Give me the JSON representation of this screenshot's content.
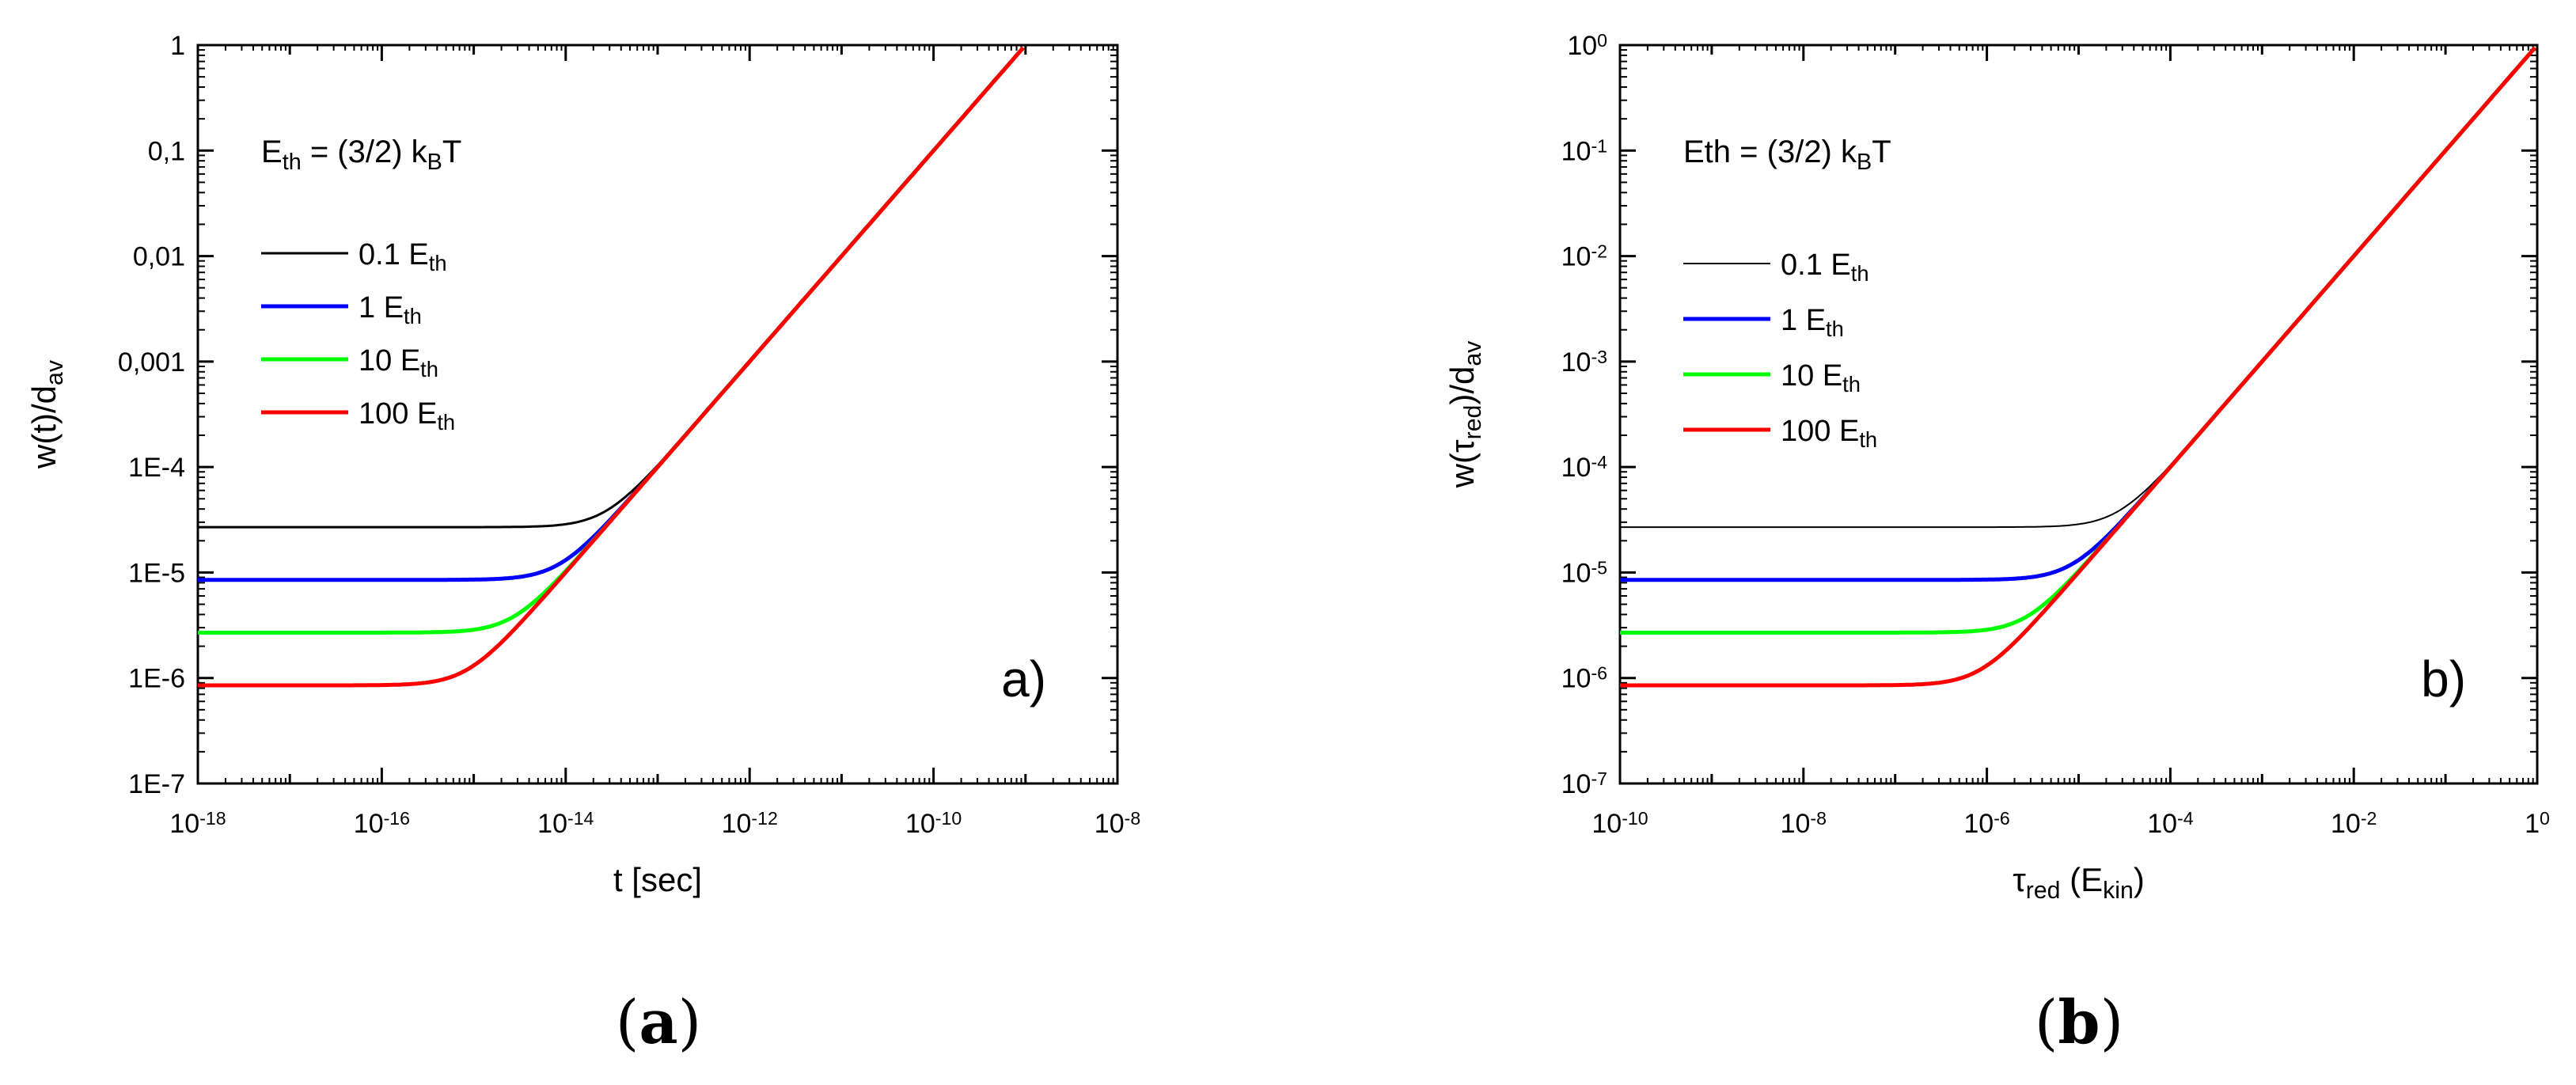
{
  "chart_data": [
    {
      "type": "line",
      "id": "a",
      "xscale": "log",
      "yscale": "log",
      "xlim_exp": [
        -18,
        -8
      ],
      "ylim_exp": [
        -7,
        0
      ],
      "xlabel": "t [sec]",
      "ylabel": {
        "main": "w(t)/d",
        "sub": "av"
      },
      "x_ticks": [
        {
          "base": "10",
          "exp": "-18"
        },
        {
          "base": "10",
          "exp": "-16"
        },
        {
          "base": "10",
          "exp": "-14"
        },
        {
          "base": "10",
          "exp": "-12"
        },
        {
          "base": "10",
          "exp": "-10"
        },
        {
          "base": "10",
          "exp": "-8"
        }
      ],
      "y_ticks": [
        {
          "text": "1E-7"
        },
        {
          "text": "1E-6"
        },
        {
          "text": "1E-5"
        },
        {
          "text": "1E-4"
        },
        {
          "text": "0,001"
        },
        {
          "text": "0,01"
        },
        {
          "text": "0,1"
        },
        {
          "text": "1"
        }
      ],
      "annotation": {
        "prefix": "E",
        "sub": "th",
        "suffix": " = (3/2) k",
        "sub2": "B",
        "tail": "T"
      },
      "panel_label": "a)",
      "caption": {
        "open": "(",
        "letter": "a",
        "close": ")"
      },
      "series": [
        {
          "name": "0.1 E",
          "name_sub": "th",
          "color": "#000000",
          "plateau_exp": -4.57,
          "cross_exp": -13.57
        },
        {
          "name": "1 E",
          "name_sub": "th",
          "color": "#0000ff",
          "plateau_exp": -5.07,
          "cross_exp": -14.07
        },
        {
          "name": "10 E",
          "name_sub": "th",
          "color": "#00ff00",
          "plateau_exp": -5.57,
          "cross_exp": -14.57
        },
        {
          "name": "100 E",
          "name_sub": "th",
          "color": "#ff0000",
          "plateau_exp": -6.07,
          "cross_exp": -15.07
        }
      ]
    },
    {
      "type": "line",
      "id": "b",
      "xscale": "log",
      "yscale": "log",
      "xlim_exp": [
        -10,
        0
      ],
      "ylim_exp": [
        -7,
        0
      ],
      "xlabel": {
        "tau": "τ",
        "sub": "red",
        "mid": " (E",
        "sub2": "kin",
        "tail": ")"
      },
      "ylabel": {
        "pre": "w(τ",
        "sub": "red",
        "mid": ")/d",
        "sub2": "av"
      },
      "x_ticks": [
        {
          "base": "10",
          "exp": "-10"
        },
        {
          "base": "10",
          "exp": "-8"
        },
        {
          "base": "10",
          "exp": "-6"
        },
        {
          "base": "10",
          "exp": "-4"
        },
        {
          "base": "10",
          "exp": "-2"
        },
        {
          "base": "1",
          "exp": "0"
        }
      ],
      "y_ticks": [
        {
          "base": "10",
          "exp": "-7"
        },
        {
          "base": "10",
          "exp": "-6"
        },
        {
          "base": "10",
          "exp": "-5"
        },
        {
          "base": "10",
          "exp": "-4"
        },
        {
          "base": "10",
          "exp": "-3"
        },
        {
          "base": "10",
          "exp": "-2"
        },
        {
          "base": "10",
          "exp": "-1"
        },
        {
          "base": "10",
          "exp": "0"
        }
      ],
      "annotation": {
        "prefix": "Eth",
        "sub": "",
        "suffix": " = (3/2) k",
        "sub2": "B",
        "tail": "T"
      },
      "panel_label": "b)",
      "caption": {
        "open": "(",
        "letter": "b",
        "close": ")"
      },
      "series": [
        {
          "name": "0.1 E",
          "name_sub": "th",
          "color": "#000000",
          "plateau_exp": -4.57,
          "cross_exp": -4.57
        },
        {
          "name": "1 E",
          "name_sub": "th",
          "color": "#0000ff",
          "plateau_exp": -5.07,
          "cross_exp": -5.07
        },
        {
          "name": "10 E",
          "name_sub": "th",
          "color": "#00ff00",
          "plateau_exp": -5.57,
          "cross_exp": -5.57
        },
        {
          "name": "100 E",
          "name_sub": "th",
          "color": "#ff0000",
          "plateau_exp": -6.07,
          "cross_exp": -6.07
        }
      ]
    }
  ]
}
